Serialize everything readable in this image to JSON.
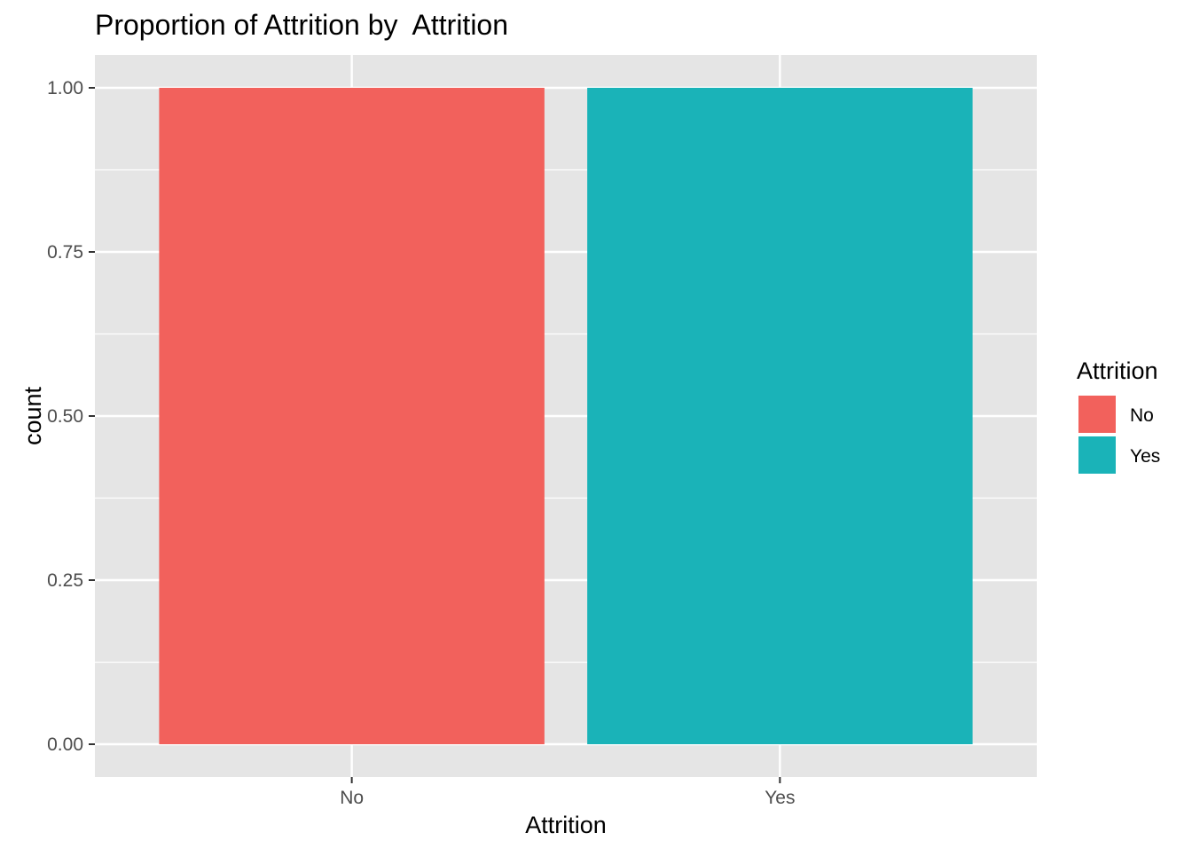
{
  "chart_data": {
    "type": "bar",
    "title": "Proportion of Attrition by  Attrition",
    "xlabel": "Attrition",
    "ylabel": "count",
    "categories": [
      "No",
      "Yes"
    ],
    "values": [
      1.0,
      1.0
    ],
    "colors": [
      "#F2615C",
      "#1AB3B8"
    ],
    "ylim": [
      -0.05,
      1.05
    ],
    "yticks": [
      0.0,
      0.25,
      0.5,
      0.75,
      1.0
    ],
    "ytick_labels": [
      "0.00",
      "0.25",
      "0.50",
      "0.75",
      "1.00"
    ],
    "grid": true,
    "panel_background": "#E5E5E5",
    "legend": {
      "title": "Attrition",
      "position": "right",
      "entries": [
        {
          "label": "No",
          "color": "#F2615C"
        },
        {
          "label": "Yes",
          "color": "#1AB3B8"
        }
      ]
    }
  }
}
